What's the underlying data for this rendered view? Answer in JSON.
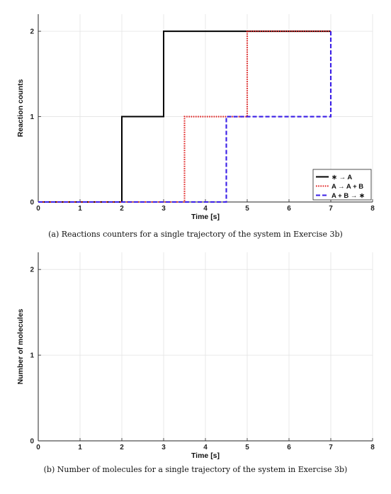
{
  "chart_data": [
    {
      "type": "line",
      "step": true,
      "xlabel": "Time [s]",
      "ylabel": "Reaction counts",
      "xlim": [
        0,
        8
      ],
      "ylim": [
        0,
        2.2
      ],
      "xticks": [
        "0",
        "1",
        "2",
        "3",
        "4",
        "5",
        "6",
        "7",
        "8"
      ],
      "yticks": [
        "0",
        "1",
        "2"
      ],
      "grid": true,
      "legend_position": "bottom-right",
      "caption": "(a) Reactions counters for a single trajectory of the system in Exercise 3b)",
      "series": [
        {
          "name": "∗ → A",
          "color": "#000000",
          "style": "solid",
          "x": [
            0,
            2,
            2,
            3,
            3,
            7
          ],
          "y": [
            0,
            0,
            1,
            1,
            2,
            2
          ]
        },
        {
          "name": "A → A + B",
          "color": "#e02020",
          "style": "dotted",
          "x": [
            0,
            3.5,
            3.5,
            5,
            5,
            7
          ],
          "y": [
            0,
            0,
            1,
            1,
            2,
            2
          ]
        },
        {
          "name": "A + B → ∗",
          "color": "#3a1ee6",
          "style": "dashed",
          "x": [
            0,
            4.5,
            4.5,
            7,
            7
          ],
          "y": [
            0,
            0,
            1,
            1,
            2
          ]
        }
      ]
    },
    {
      "type": "line",
      "xlabel": "Time [s]",
      "ylabel": "Number of molecules",
      "xlim": [
        0,
        8
      ],
      "ylim": [
        0,
        2.2
      ],
      "xticks": [
        "0",
        "1",
        "2",
        "3",
        "4",
        "5",
        "6",
        "7",
        "8"
      ],
      "yticks": [
        "0",
        "1",
        "2"
      ],
      "grid": true,
      "caption": "(b) Number of molecules for a single trajectory of the system in Exercise 3b)",
      "series": []
    }
  ]
}
